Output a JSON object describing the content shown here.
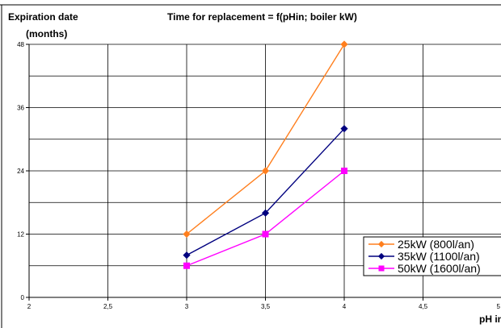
{
  "chart_data": {
    "type": "line",
    "title": "Time for replacement = f(pHin; boiler kW)",
    "ylabel_line1": "Expiration date",
    "ylabel_line2": "(months)",
    "xlabel": "pH in",
    "xlim": [
      2,
      5
    ],
    "ylim": [
      0,
      48
    ],
    "x_ticks": [
      "2",
      "2,5",
      "3",
      "3,5",
      "4",
      "4,5",
      "5"
    ],
    "y_ticks": [
      "0",
      "12",
      "24",
      "36",
      "48"
    ],
    "grid": true,
    "legend_position": "bottom-right",
    "series": [
      {
        "name": "25kW  (800l/an)",
        "color": "#ff7f1e",
        "marker": "diamond",
        "x": [
          3,
          3.5,
          4
        ],
        "y": [
          12,
          24,
          48
        ]
      },
      {
        "name": "35kW  (1100l/an)",
        "color": "#00007f",
        "marker": "diamond",
        "x": [
          3,
          3.5,
          4
        ],
        "y": [
          8,
          16,
          32
        ]
      },
      {
        "name": "50kW  (1600l/an)",
        "color": "#ff00ff",
        "marker": "square",
        "x": [
          3,
          3.5,
          4
        ],
        "y": [
          6,
          12,
          24
        ]
      }
    ]
  }
}
